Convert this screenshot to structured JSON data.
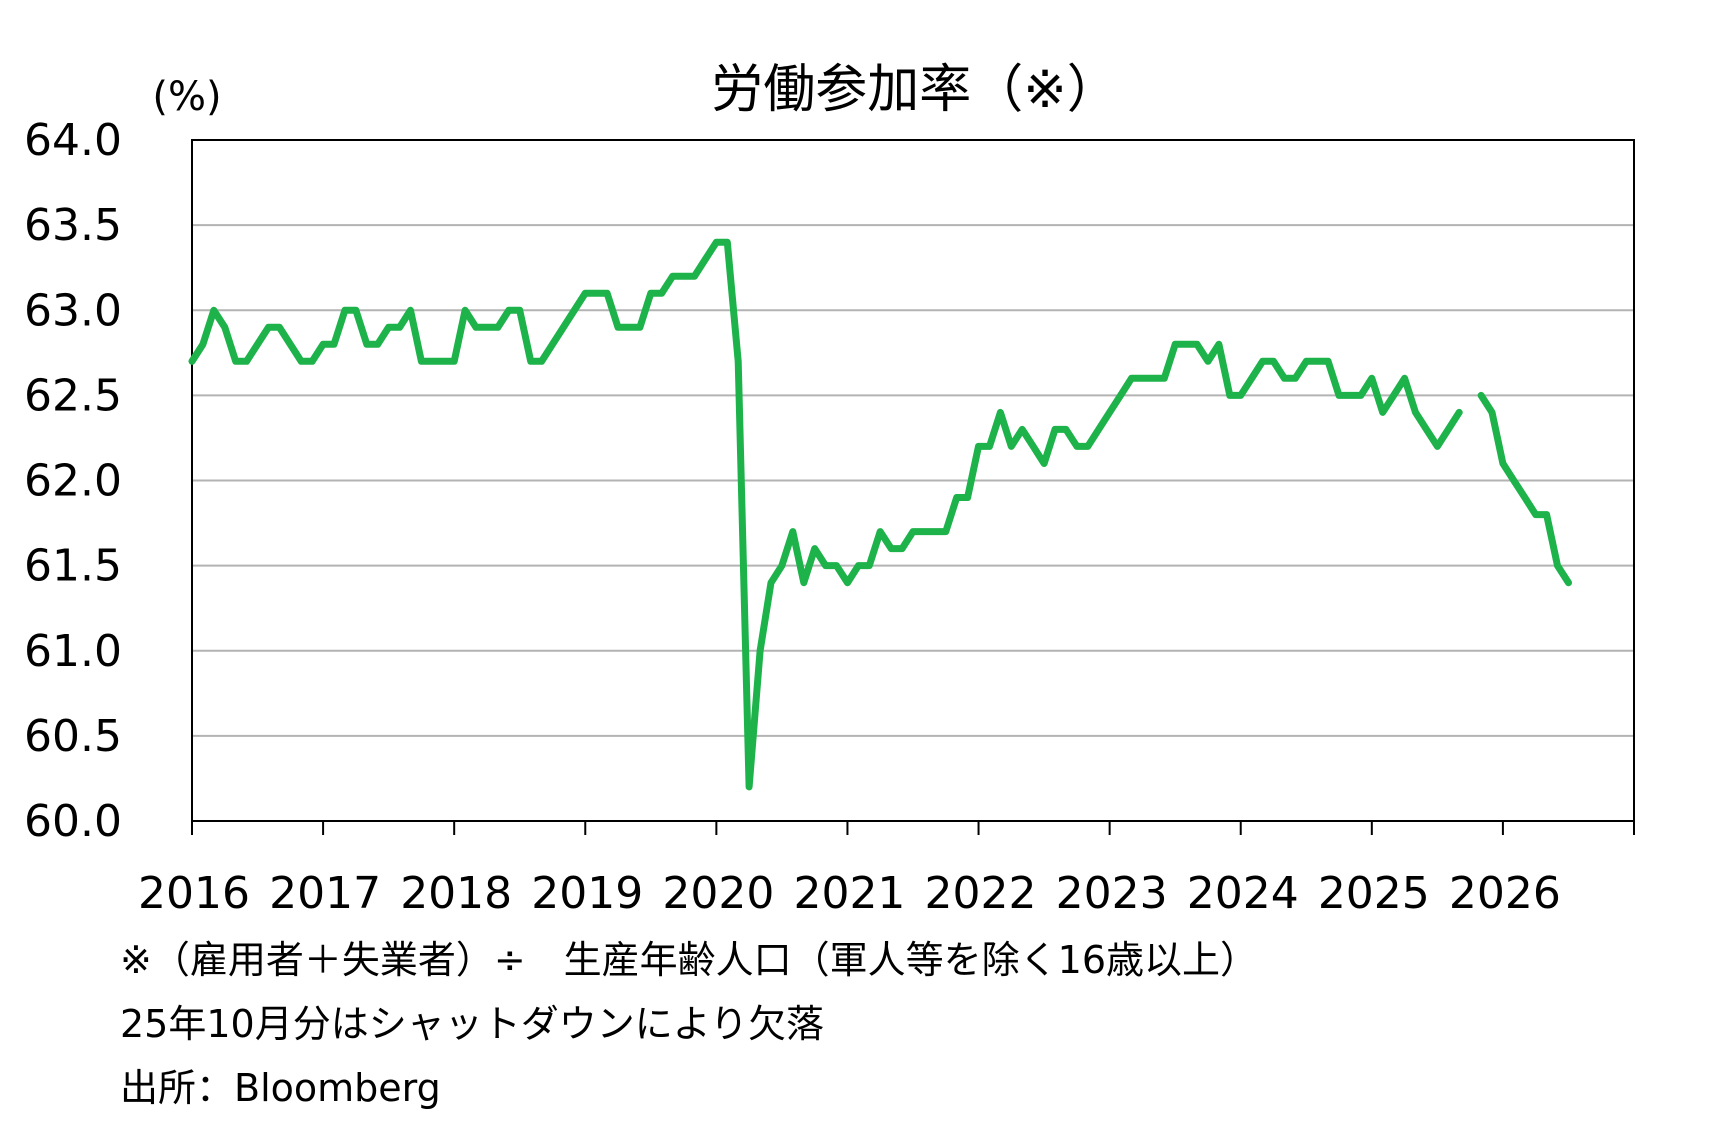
{
  "chart_data": {
    "type": "line",
    "title": "労働参加率（※）",
    "ylabel": "(%)",
    "xlabel": "",
    "ylim": [
      60.0,
      64.0
    ],
    "xlim": [
      2016,
      2027
    ],
    "y_ticks": [
      "60.0",
      "60.5",
      "61.0",
      "61.5",
      "62.0",
      "62.5",
      "63.0",
      "63.5",
      "64.0"
    ],
    "x_tick_labels": [
      "2016",
      "2017",
      "2018",
      "2019",
      "2020",
      "2021",
      "2022",
      "2023",
      "2024",
      "2025",
      "2026"
    ],
    "grid": true,
    "legend": "none",
    "color": "#1db34a",
    "start": "2016-01",
    "series": [
      {
        "values": [
          62.7,
          62.8,
          63.0,
          62.9,
          62.7,
          62.7,
          62.8,
          62.9,
          62.9,
          62.8,
          62.7,
          62.7,
          62.8,
          62.8,
          63.0,
          63.0,
          62.8,
          62.8,
          62.9,
          62.9,
          63.0,
          62.7,
          62.7,
          62.7,
          62.7,
          63.0,
          62.9,
          62.9,
          62.9,
          63.0,
          63.0,
          62.7,
          62.7,
          62.8,
          62.9,
          63.0,
          63.1,
          63.1,
          63.1,
          62.9,
          62.9,
          62.9,
          63.1,
          63.1,
          63.2,
          63.2,
          63.2,
          63.3,
          63.4,
          63.4,
          62.7,
          60.2,
          61.0,
          61.4,
          61.5,
          61.7,
          61.4,
          61.6,
          61.5,
          61.5,
          61.4,
          61.5,
          61.5,
          61.7,
          61.6,
          61.6,
          61.7,
          61.7,
          61.7,
          61.7,
          61.9,
          61.9,
          62.2,
          62.2,
          62.4,
          62.2,
          62.3,
          62.2,
          62.1,
          62.3,
          62.3,
          62.2,
          62.2,
          62.3,
          62.4,
          62.5,
          62.6,
          62.6,
          62.6,
          62.6,
          62.8,
          62.8,
          62.8,
          62.7,
          62.8,
          62.5,
          62.5,
          62.6,
          62.7,
          62.7,
          62.6,
          62.6,
          62.7,
          62.7,
          62.7,
          62.5,
          62.5,
          62.5,
          62.6,
          62.4,
          62.5,
          62.6,
          62.4,
          62.3,
          62.2,
          62.3,
          62.4,
          null,
          62.5,
          62.4,
          62.1,
          62.0,
          61.9,
          61.8,
          61.8,
          61.5,
          61.4
        ]
      }
    ]
  },
  "notes": {
    "line1": "※（雇用者＋失業者）÷　生産年齢人口（軍人等を除く16歳以上）",
    "line2": "25年10月分はシャットダウンにより欠落",
    "line3": "出所：Bloomberg"
  }
}
